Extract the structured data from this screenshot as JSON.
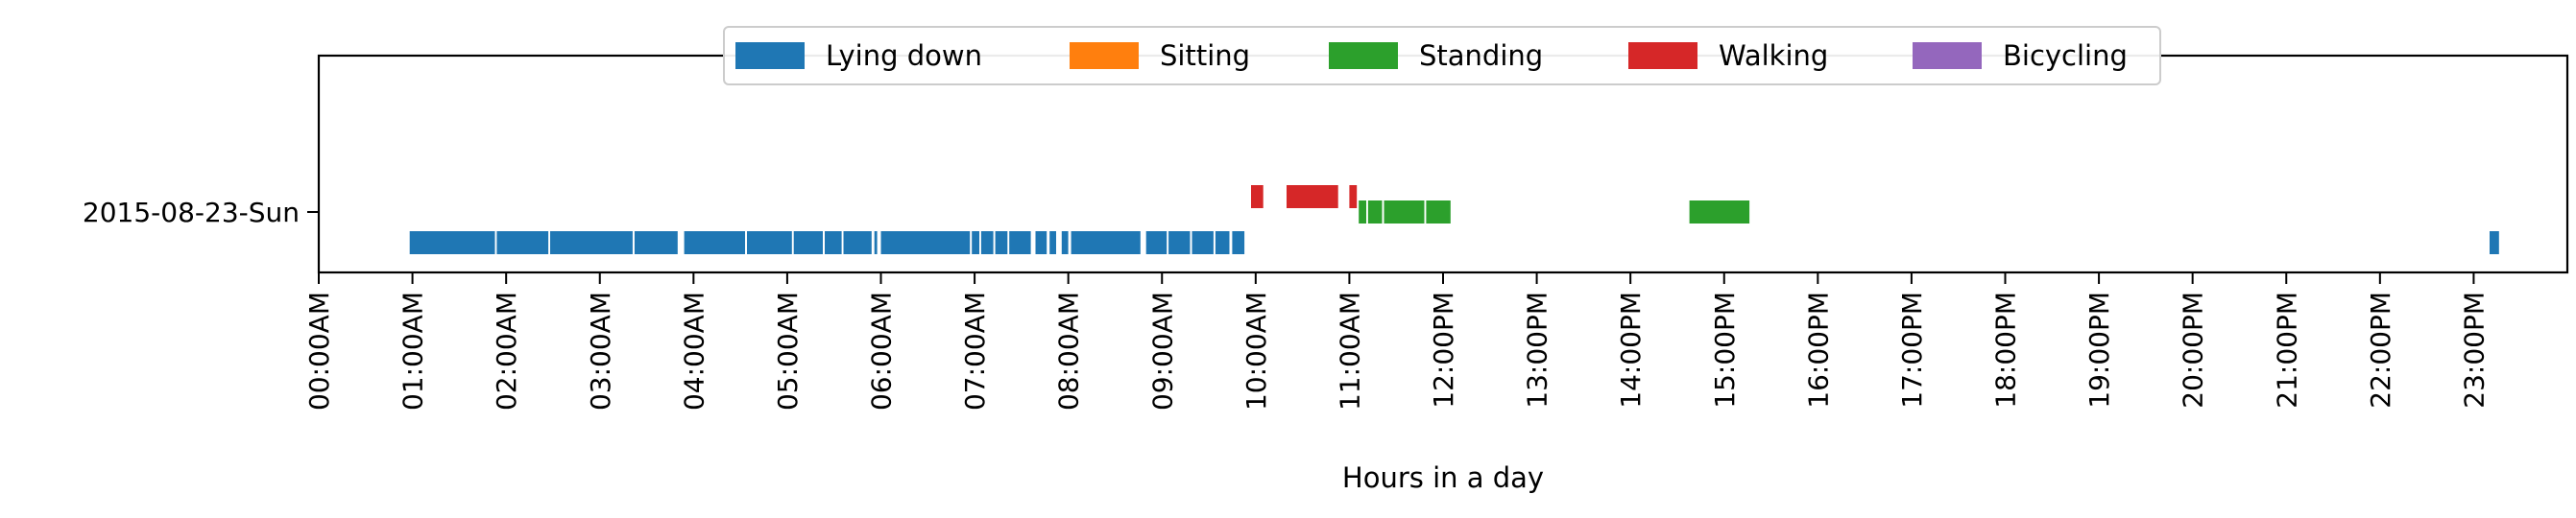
{
  "chart_data": {
    "type": "timeline",
    "title": "",
    "xlabel": "Hours in a day",
    "ylabel": "",
    "xlim": [
      0,
      24
    ],
    "x_ticks": [
      {
        "value": 0,
        "label": "00:00AM"
      },
      {
        "value": 1,
        "label": "01:00AM"
      },
      {
        "value": 2,
        "label": "02:00AM"
      },
      {
        "value": 3,
        "label": "03:00AM"
      },
      {
        "value": 4,
        "label": "04:00AM"
      },
      {
        "value": 5,
        "label": "05:00AM"
      },
      {
        "value": 6,
        "label": "06:00AM"
      },
      {
        "value": 7,
        "label": "07:00AM"
      },
      {
        "value": 8,
        "label": "08:00AM"
      },
      {
        "value": 9,
        "label": "09:00AM"
      },
      {
        "value": 10,
        "label": "10:00AM"
      },
      {
        "value": 11,
        "label": "11:00AM"
      },
      {
        "value": 12,
        "label": "12:00PM"
      },
      {
        "value": 13,
        "label": "13:00PM"
      },
      {
        "value": 14,
        "label": "14:00PM"
      },
      {
        "value": 15,
        "label": "15:00PM"
      },
      {
        "value": 16,
        "label": "16:00PM"
      },
      {
        "value": 17,
        "label": "17:00PM"
      },
      {
        "value": 18,
        "label": "18:00PM"
      },
      {
        "value": 19,
        "label": "19:00PM"
      },
      {
        "value": 20,
        "label": "20:00PM"
      },
      {
        "value": 21,
        "label": "21:00PM"
      },
      {
        "value": 22,
        "label": "22:00PM"
      },
      {
        "value": 23,
        "label": "23:00PM"
      }
    ],
    "rows": [
      "2015-08-23-Sun"
    ],
    "grid": false,
    "legend_position": "top-center",
    "series": [
      {
        "name": "Lying down",
        "color": "#1f77b4",
        "intervals": [
          [
            0.97,
            1.88
          ],
          [
            1.9,
            2.45
          ],
          [
            2.47,
            3.35
          ],
          [
            3.37,
            3.83
          ],
          [
            3.9,
            4.55
          ],
          [
            4.57,
            5.05
          ],
          [
            5.07,
            5.38
          ],
          [
            5.4,
            5.58
          ],
          [
            5.6,
            5.9
          ],
          [
            5.93,
            5.96
          ],
          [
            6.0,
            6.95
          ],
          [
            6.97,
            7.05
          ],
          [
            7.07,
            7.2
          ],
          [
            7.22,
            7.35
          ],
          [
            7.37,
            7.6
          ],
          [
            7.65,
            7.77
          ],
          [
            7.8,
            7.87
          ],
          [
            7.93,
            8.0
          ],
          [
            8.03,
            8.77
          ],
          [
            8.83,
            9.05
          ],
          [
            9.07,
            9.3
          ],
          [
            9.32,
            9.55
          ],
          [
            9.57,
            9.72
          ],
          [
            9.75,
            9.88
          ],
          [
            23.17,
            23.27
          ]
        ]
      },
      {
        "name": "Sitting",
        "color": "#ff7f0e",
        "intervals": []
      },
      {
        "name": "Standing",
        "color": "#2ca02c",
        "intervals": [
          [
            11.1,
            11.18
          ],
          [
            11.2,
            11.35
          ],
          [
            11.37,
            11.8
          ],
          [
            11.82,
            12.08
          ],
          [
            14.63,
            15.27
          ]
        ]
      },
      {
        "name": "Walking",
        "color": "#d62728",
        "intervals": [
          [
            9.95,
            10.08
          ],
          [
            10.33,
            10.88
          ],
          [
            11.0,
            11.08
          ]
        ]
      },
      {
        "name": "Bicycling",
        "color": "#9467bd",
        "intervals": []
      }
    ]
  }
}
